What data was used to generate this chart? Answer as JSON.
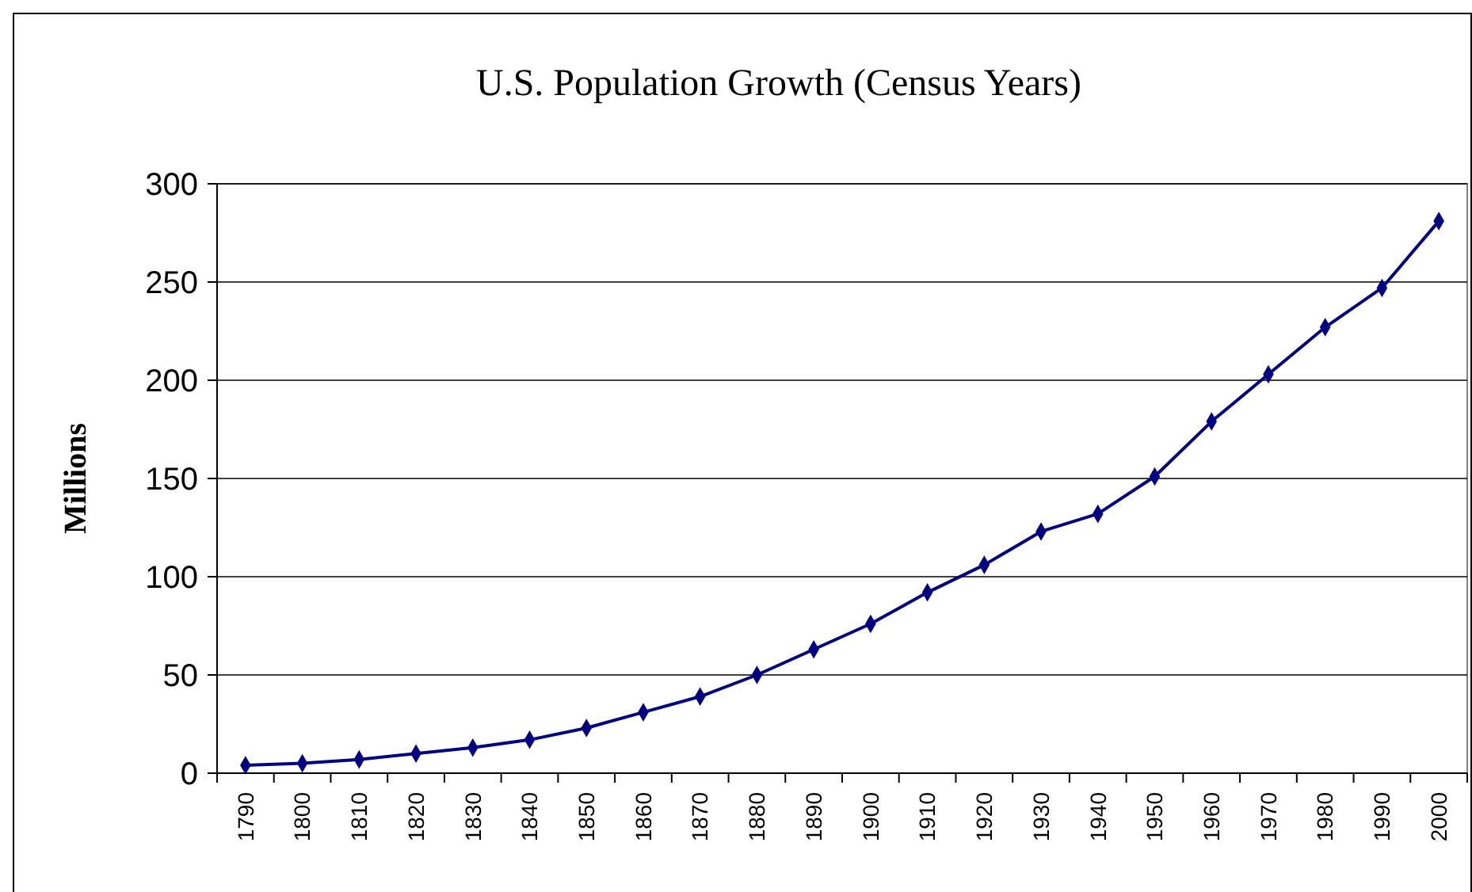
{
  "chart_data": {
    "type": "line",
    "title": "U.S. Population Growth (Census Years)",
    "ylabel": "Millions",
    "categories": [
      "1790",
      "1800",
      "1810",
      "1820",
      "1830",
      "1840",
      "1850",
      "1860",
      "1870",
      "1880",
      "1890",
      "1900",
      "1910",
      "1920",
      "1930",
      "1940",
      "1950",
      "1960",
      "1970",
      "1980",
      "1990",
      "2000"
    ],
    "series": [
      {
        "color": "#000080",
        "values": [
          4,
          5,
          7,
          10,
          13,
          17,
          23,
          31,
          39,
          50,
          63,
          76,
          92,
          106,
          123,
          132,
          151,
          179,
          203,
          227,
          247,
          281
        ]
      }
    ],
    "ylim": [
      0,
      300
    ],
    "yticks": [
      0,
      50,
      100,
      150,
      200,
      250,
      300
    ],
    "grid": "y",
    "marker": "diamond",
    "line_style": "solid"
  }
}
